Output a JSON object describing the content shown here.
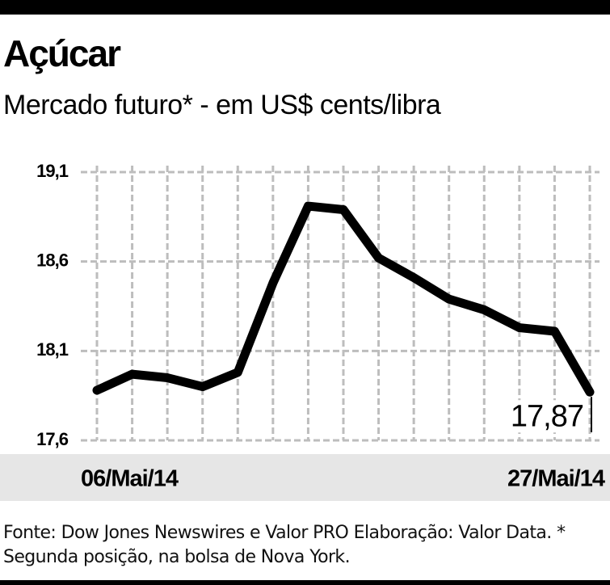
{
  "chart_data": {
    "type": "line",
    "title": "Açúcar",
    "subtitle": "Mercado futuro* - em US$ cents/libra",
    "categories": [
      "06/Mai/14",
      null,
      null,
      null,
      null,
      null,
      null,
      null,
      null,
      null,
      null,
      null,
      null,
      null,
      "27/Mai/14"
    ],
    "series": [
      {
        "color": "#000000",
        "values": [
          17.88,
          17.97,
          17.95,
          17.9,
          17.98,
          18.48,
          18.91,
          18.89,
          18.62,
          18.51,
          18.39,
          18.33,
          18.23,
          18.21,
          17.87
        ],
        "value_labels": [
          null,
          null,
          null,
          null,
          null,
          null,
          null,
          null,
          null,
          null,
          null,
          null,
          null,
          null,
          "17,87"
        ]
      }
    ],
    "ylim": [
      17.6,
      19.1
    ],
    "yticks": [
      {
        "value": 17.6,
        "label": "17,6"
      },
      {
        "value": 18.1,
        "label": "18,1"
      },
      {
        "value": 18.6,
        "label": "18,6"
      },
      {
        "value": 19.1,
        "label": "19,1"
      }
    ],
    "grid": true,
    "source": "Fonte: Dow Jones Newswires e Valor PRO Elaboração: Valor Data. * Segunda posição, na bolsa de Nova York."
  }
}
